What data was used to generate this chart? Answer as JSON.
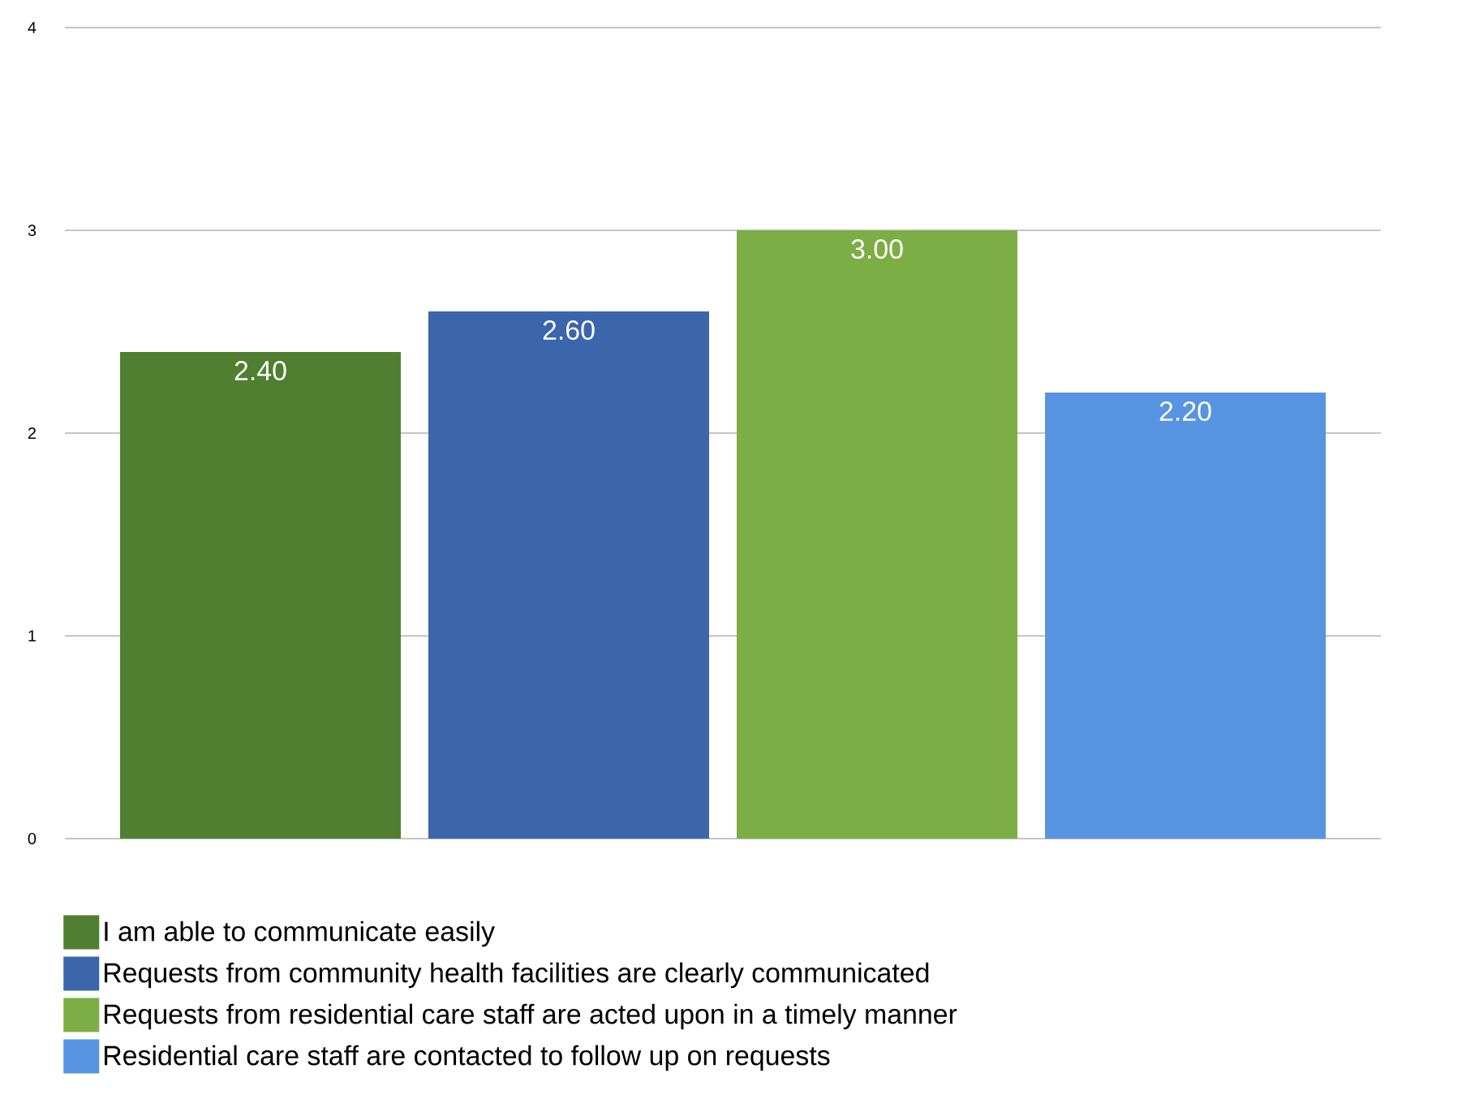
{
  "chart_data": {
    "type": "bar",
    "categories": [
      null
    ],
    "series": [
      {
        "name": "I am able to communicate easily",
        "color": "#507f31",
        "values": [
          2.4
        ],
        "value_labels": [
          "2.40"
        ]
      },
      {
        "name": "Requests from community health facilities are clearly communicated",
        "color": "#3c66ab",
        "values": [
          2.6
        ],
        "value_labels": [
          "2.60"
        ]
      },
      {
        "name": "Requests from residential care staff are acted upon in a timely manner",
        "color": "#7dae45",
        "values": [
          3.0
        ],
        "value_labels": [
          "3.00"
        ]
      },
      {
        "name": "Residential care staff are contacted to follow up on requests",
        "color": "#5794e2",
        "values": [
          2.2
        ],
        "value_labels": [
          "2.20"
        ]
      }
    ],
    "ylim": [
      0,
      4
    ],
    "yticks": [
      0,
      1,
      2,
      3,
      4
    ],
    "grid": "y",
    "legend": "bottom"
  }
}
